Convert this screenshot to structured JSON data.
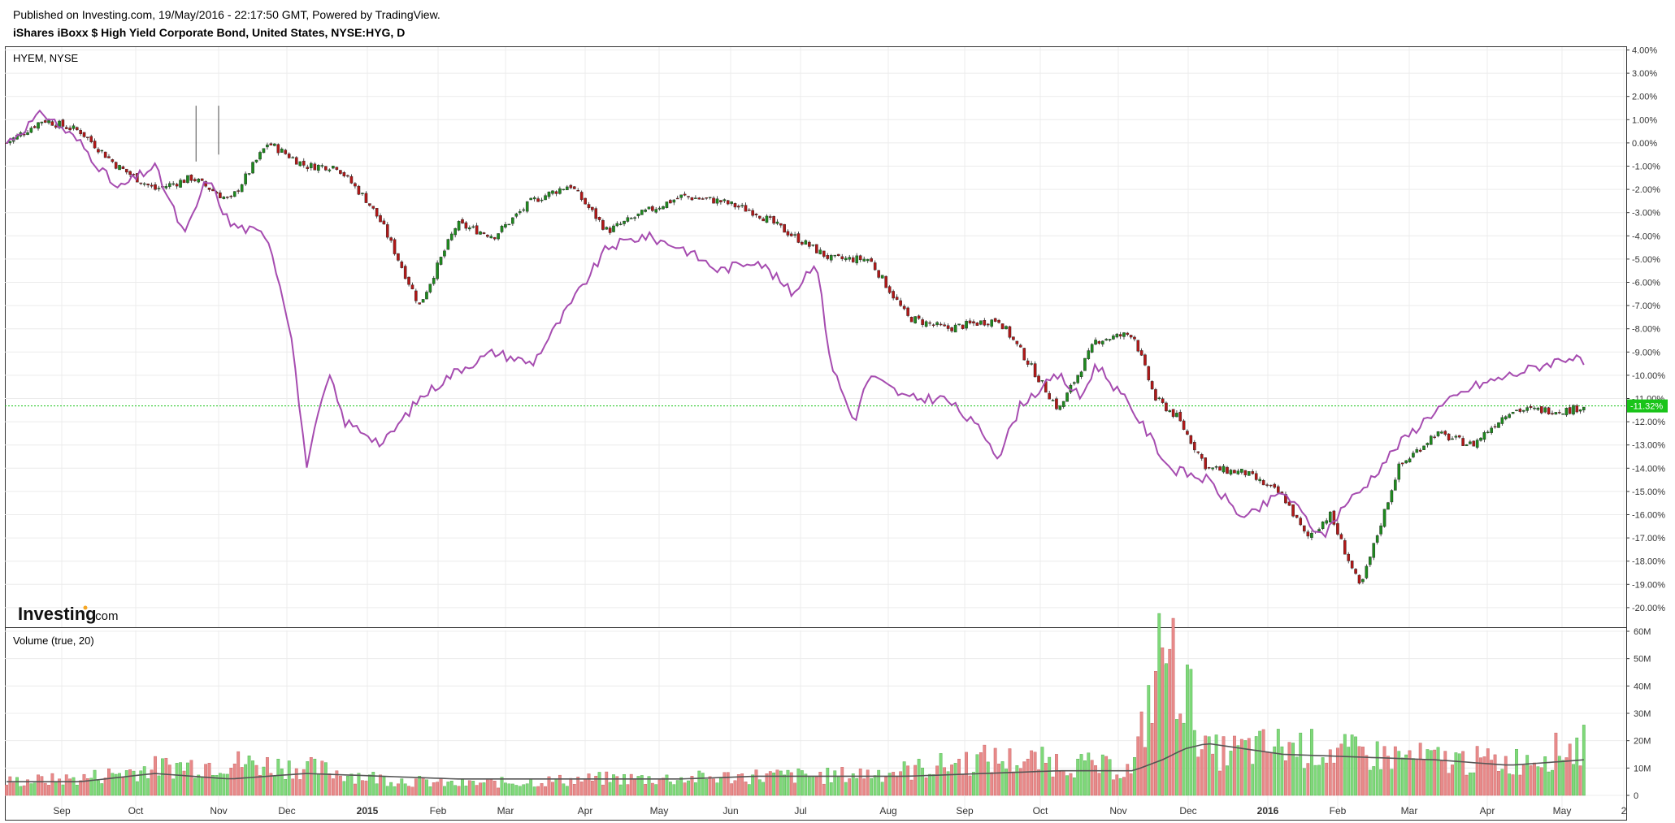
{
  "header": {
    "published": "Published on Investing.com, 19/May/2016 - 22:17:50 GMT, Powered by TradingView.",
    "title": "iShares iBoxx $ High Yield Corporate Bond, United States, NYSE:HYG, D"
  },
  "logo": {
    "brand": "Investing",
    "suffix": ".com"
  },
  "colors": {
    "up": "#1e8a1e",
    "down": "#b01818",
    "compare_line": "#a64cb0",
    "last_price": "#19c419",
    "vol_up": "#7fd97a",
    "vol_down": "#e88a8a",
    "vol_ma": "#555555"
  },
  "chart_data": [
    {
      "type": "line",
      "pane_title": "HYEM, NYSE",
      "y_unit": "%",
      "ylim": [
        -20.8,
        4.0
      ],
      "y_ticks": [
        "4.00%",
        "3.00%",
        "2.00%",
        "1.00%",
        "0.00%",
        "-1.00%",
        "-2.00%",
        "-3.00%",
        "-4.00%",
        "-5.00%",
        "-6.00%",
        "-7.00%",
        "-8.00%",
        "-9.00%",
        "-10.00%",
        "-11.00%",
        "-12.00%",
        "-13.00%",
        "-14.00%",
        "-15.00%",
        "-16.00%",
        "-17.00%",
        "-18.00%",
        "-19.00%",
        "-20.00%"
      ],
      "x_ticks": [
        "Sep",
        "Oct",
        "Nov",
        "Dec",
        "2015",
        "Feb",
        "Mar",
        "Apr",
        "May",
        "Jun",
        "Jul",
        "Aug",
        "Sep",
        "Oct",
        "Nov",
        "Dec",
        "2016",
        "Feb",
        "Mar",
        "Apr",
        "May",
        "2"
      ],
      "last_value_label": "-11.32%",
      "last_value": -11.32,
      "series": [
        {
          "style": "candlestick",
          "x_month": [
            0,
            0.5,
            1,
            1.5,
            2,
            2.5,
            3,
            3.5,
            4,
            4.4,
            4.8,
            5,
            5.5,
            6,
            6.5,
            7,
            7.5,
            8,
            8.5,
            9,
            9.5,
            10,
            10.5,
            11,
            11.5,
            12,
            12.5,
            13,
            13.2,
            13.5,
            14,
            14.5,
            15,
            15.3,
            15.6,
            16,
            16.5,
            17,
            17.3,
            17.6,
            18,
            18.5,
            19,
            19.5,
            20,
            20.5,
            20.8,
            21
          ],
          "values": [
            0,
            1,
            0.5,
            -1,
            -2,
            -1.5,
            -2.5,
            0,
            -1,
            -1,
            -2.5,
            -3.5,
            -7,
            -3.5,
            -4,
            -2.5,
            -1.8,
            -3.8,
            -3,
            -2.3,
            -2.5,
            -3,
            -4,
            -5,
            -5,
            -7.5,
            -8,
            -7.7,
            -7.6,
            -9,
            -11.5,
            -8.5,
            -8.2,
            -11,
            -11.8,
            -14,
            -14.2,
            -15.2,
            -17,
            -16,
            -19.2,
            -14,
            -12.5,
            -13,
            -11.5,
            -11.5,
            -11.5,
            -11.32
          ]
        },
        {
          "style": "line",
          "x_month": [
            0,
            0.5,
            1,
            1.5,
            2,
            2.4,
            2.7,
            3,
            3.5,
            3.8,
            4,
            4.3,
            4.5,
            4.8,
            5,
            5.5,
            6,
            6.5,
            7,
            7.5,
            8,
            8.5,
            9,
            9.5,
            10,
            10.5,
            10.8,
            11,
            11.3,
            11.5,
            12,
            12.5,
            13,
            13.2,
            13.5,
            14,
            14.3,
            14.5,
            15,
            15.5,
            16,
            16.5,
            17,
            17.5,
            17.8,
            18,
            18.5,
            19,
            19.5,
            20,
            20.5,
            20.8,
            21
          ],
          "values": [
            0,
            1.3,
            0,
            -2,
            -1,
            -4,
            -1.5,
            -3.5,
            -4,
            -8,
            -13.9,
            -10,
            -12,
            -12.5,
            -13,
            -11,
            -9.8,
            -9,
            -9.5,
            -7,
            -4.5,
            -4,
            -4.5,
            -5.5,
            -5,
            -6.5,
            -5,
            -9.5,
            -12,
            -10,
            -11,
            -11,
            -12.5,
            -13.5,
            -11.2,
            -10,
            -11,
            -9.5,
            -11.5,
            -14,
            -14.5,
            -16.2,
            -15,
            -17,
            -15.5,
            -15,
            -13,
            -11.5,
            -10.5,
            -10,
            -9.5,
            -9.2,
            -9.5
          ]
        }
      ]
    },
    {
      "type": "bar",
      "pane_title": "Volume (true, 20)",
      "ylim": [
        0,
        60
      ],
      "y_ticks": [
        "60M",
        "50M",
        "40M",
        "30M",
        "20M",
        "10M",
        "0"
      ],
      "series": [
        {
          "name": "Volume",
          "x_month": [
            0,
            1,
            2,
            3,
            4,
            5,
            6,
            7,
            8,
            9,
            10,
            11,
            12,
            13,
            14,
            15,
            15.4,
            15.7,
            16,
            17,
            18,
            19,
            20,
            20.8,
            21
          ],
          "values": [
            5,
            6,
            10,
            12,
            10,
            6,
            4,
            5,
            6,
            6,
            7,
            7,
            9,
            13,
            12,
            9,
            54,
            40,
            15,
            18,
            15,
            13,
            12,
            17,
            18
          ]
        },
        {
          "name": "MA20",
          "x_month": [
            0,
            1,
            2,
            3,
            4,
            5,
            6,
            7,
            8,
            9,
            10,
            11,
            12,
            13,
            14,
            15,
            15.4,
            15.7,
            16,
            17,
            18,
            19,
            20,
            21
          ],
          "values": [
            5,
            5,
            8,
            6,
            8,
            7,
            6,
            6,
            6,
            6,
            7,
            7,
            7,
            8,
            9,
            9,
            13,
            17,
            19,
            15,
            14,
            13,
            11,
            13
          ]
        }
      ]
    }
  ]
}
